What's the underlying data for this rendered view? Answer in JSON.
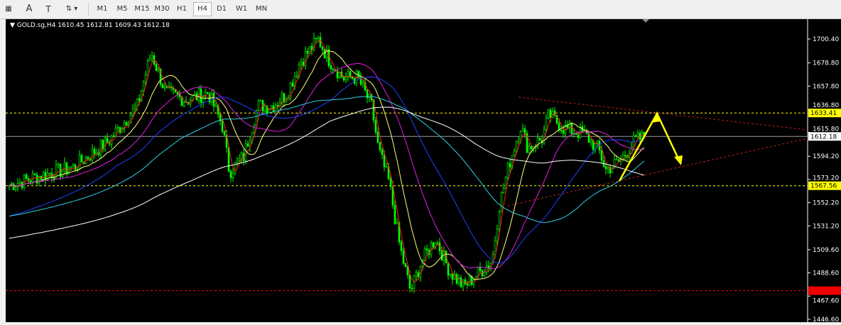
{
  "toolbar": {
    "tools": [
      "grid-icon",
      "text-a-icon",
      "text-label-icon",
      "arrows-icon"
    ],
    "timeframes": [
      "M1",
      "M5",
      "M15",
      "M30",
      "H1",
      "H4",
      "D1",
      "W1",
      "MN"
    ],
    "active": "H4"
  },
  "chart_header": {
    "symbol": "GOLD.sg,H4",
    "open": "1610.45",
    "high": "1612.81",
    "low": "1609.43",
    "close": "1612.18"
  },
  "chart_data": {
    "type": "candlestick",
    "symbol": "GOLD.sg",
    "timeframe": "H4",
    "ylim": [
      1446.6,
      1710
    ],
    "y_ticks": [
      "1700.40",
      "1678.80",
      "1657.80",
      "1636.80",
      "1615.80",
      "1594.20",
      "1573.20",
      "1552.20",
      "1531.20",
      "1509.60",
      "1488.60",
      "1467.60",
      "1446.60"
    ],
    "price_path": [
      [
        0,
        1568
      ],
      [
        40,
        1576
      ],
      [
        90,
        1584
      ],
      [
        140,
        1608
      ],
      [
        180,
        1640
      ],
      [
        200,
        1688
      ],
      [
        220,
        1652
      ],
      [
        250,
        1645
      ],
      [
        280,
        1652
      ],
      [
        300,
        1622
      ],
      [
        310,
        1580
      ],
      [
        330,
        1594
      ],
      [
        350,
        1640
      ],
      [
        370,
        1640
      ],
      [
        390,
        1650
      ],
      [
        410,
        1680
      ],
      [
        435,
        1700
      ],
      [
        450,
        1682
      ],
      [
        470,
        1665
      ],
      [
        490,
        1666
      ],
      [
        510,
        1640
      ],
      [
        520,
        1600
      ],
      [
        535,
        1570
      ],
      [
        550,
        1512
      ],
      [
        565,
        1472
      ],
      [
        580,
        1498
      ],
      [
        600,
        1520
      ],
      [
        620,
        1490
      ],
      [
        640,
        1476
      ],
      [
        660,
        1488
      ],
      [
        680,
        1500
      ],
      [
        690,
        1550
      ],
      [
        705,
        1590
      ],
      [
        720,
        1622
      ],
      [
        730,
        1602
      ],
      [
        750,
        1610
      ],
      [
        760,
        1632
      ],
      [
        780,
        1620
      ],
      [
        810,
        1614
      ],
      [
        830,
        1600
      ],
      [
        840,
        1582
      ],
      [
        860,
        1590
      ],
      [
        880,
        1608
      ],
      [
        895,
        1612
      ]
    ],
    "moving_averages": [
      {
        "color": "#ff2020",
        "period": 4
      },
      {
        "color": "#ffff80",
        "period": 14
      },
      {
        "color": "#e020e0",
        "period": 30
      },
      {
        "color": "#2040ff",
        "period": 50
      },
      {
        "color": "#30d0e0",
        "period": 80
      },
      {
        "color": "#ffffff",
        "period": 150
      }
    ],
    "levels": [
      {
        "price": 1633.41,
        "label": "1633.41",
        "color": "#ffff00",
        "style": "dashed"
      },
      {
        "price": 1612.18,
        "label": "1612.18",
        "color": "#ffffff",
        "style": "solid"
      },
      {
        "price": 1567.56,
        "label": "1567.56",
        "color": "#ffff00",
        "style": "dashed"
      },
      {
        "price": 1472.5,
        "label": "",
        "color": "#ff0000",
        "style": "dashed"
      }
    ],
    "candle_color": "#00ff00"
  }
}
